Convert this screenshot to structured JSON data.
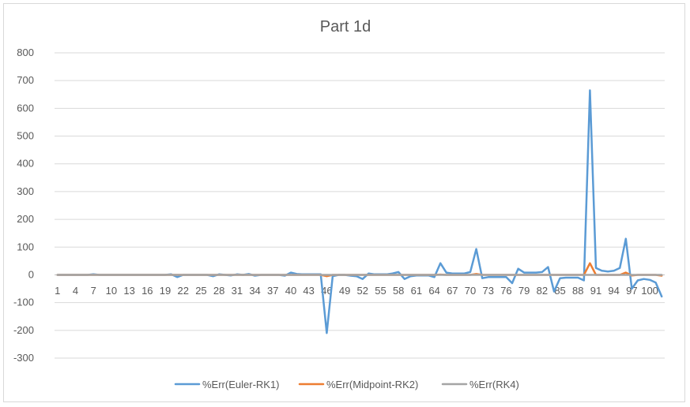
{
  "chart_data": {
    "type": "line",
    "title": "Part 1d",
    "xlabel": "",
    "ylabel": "",
    "ylim": [
      -300,
      800
    ],
    "ytick_step": 100,
    "x_start": 1,
    "x_end": 102,
    "x_tick_labels": [
      1,
      4,
      7,
      10,
      13,
      16,
      19,
      22,
      25,
      28,
      31,
      34,
      37,
      40,
      43,
      46,
      49,
      52,
      55,
      58,
      61,
      64,
      67,
      70,
      73,
      76,
      79,
      82,
      85,
      88,
      91,
      94,
      97,
      100
    ],
    "grid": true,
    "legend_position": "bottom",
    "series": [
      {
        "name": "%Err(Euler-RK1)",
        "color": "#5b9bd5",
        "values": [
          0,
          0,
          0,
          0,
          0,
          0,
          2,
          0,
          0,
          0,
          0,
          0,
          0,
          0,
          0,
          0,
          0,
          0,
          0,
          2,
          -8,
          0,
          0,
          0,
          0,
          0,
          -5,
          2,
          0,
          -2,
          2,
          0,
          3,
          -3,
          0,
          0,
          0,
          0,
          -3,
          8,
          3,
          2,
          2,
          2,
          2,
          -210,
          -5,
          0,
          0,
          -3,
          -5,
          -15,
          5,
          2,
          2,
          2,
          5,
          10,
          -15,
          -5,
          -2,
          -2,
          -2,
          -8,
          42,
          8,
          5,
          5,
          5,
          10,
          93,
          -12,
          -8,
          -8,
          -8,
          -8,
          -30,
          22,
          8,
          8,
          8,
          10,
          28,
          -60,
          -12,
          -10,
          -10,
          -10,
          -20,
          665,
          25,
          15,
          12,
          15,
          25,
          130,
          -50,
          -20,
          -15,
          -18,
          -28,
          -78
        ]
      },
      {
        "name": "%Err(Midpoint-RK2)",
        "color": "#ed7d31",
        "values": [
          0,
          0,
          0,
          0,
          0,
          0,
          0,
          0,
          0,
          0,
          0,
          0,
          0,
          0,
          0,
          0,
          0,
          0,
          0,
          0,
          0,
          0,
          0,
          0,
          0,
          0,
          0,
          0,
          0,
          0,
          0,
          0,
          0,
          0,
          0,
          0,
          0,
          0,
          0,
          0,
          0,
          0,
          0,
          0,
          0,
          -5,
          0,
          0,
          0,
          0,
          0,
          0,
          0,
          0,
          0,
          0,
          0,
          0,
          0,
          0,
          0,
          0,
          0,
          0,
          1,
          0,
          0,
          0,
          0,
          0,
          3,
          0,
          0,
          0,
          0,
          0,
          0,
          0,
          0,
          0,
          0,
          0,
          0,
          0,
          0,
          0,
          0,
          0,
          0,
          42,
          0,
          0,
          0,
          0,
          0,
          8,
          -2,
          0,
          0,
          0,
          0,
          -3
        ]
      },
      {
        "name": "%Err(RK4)",
        "color": "#a5a5a5",
        "values": [
          0,
          0,
          0,
          0,
          0,
          0,
          0,
          0,
          0,
          0,
          0,
          0,
          0,
          0,
          0,
          0,
          0,
          0,
          0,
          0,
          0,
          0,
          0,
          0,
          0,
          0,
          0,
          0,
          0,
          0,
          0,
          0,
          0,
          0,
          0,
          0,
          0,
          0,
          0,
          0,
          0,
          0,
          0,
          0,
          0,
          0,
          0,
          0,
          0,
          0,
          0,
          0,
          0,
          0,
          0,
          0,
          0,
          0,
          0,
          0,
          0,
          0,
          0,
          0,
          0,
          0,
          0,
          0,
          0,
          0,
          0,
          0,
          0,
          0,
          0,
          0,
          0,
          0,
          0,
          0,
          0,
          0,
          0,
          0,
          0,
          0,
          0,
          0,
          0,
          0,
          0,
          0,
          0,
          0,
          0,
          0,
          0,
          0,
          0,
          0,
          0,
          0
        ]
      }
    ]
  }
}
